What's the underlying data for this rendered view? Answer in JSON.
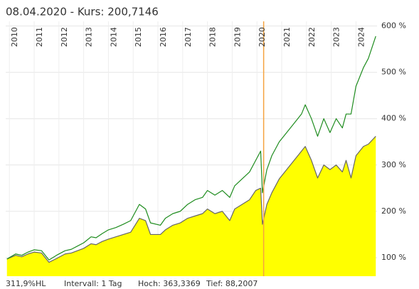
{
  "chart_data": {
    "type": "line",
    "title": "08.04.2020  -  Kurs: 200,7146",
    "x": [
      2009.9,
      2010.25,
      2010.5,
      2010.75,
      2011.0,
      2011.3,
      2011.6,
      2011.9,
      2012.25,
      2012.5,
      2012.75,
      2013.0,
      2013.3,
      2013.5,
      2013.75,
      2014.0,
      2014.3,
      2014.6,
      2014.9,
      2015.25,
      2015.5,
      2015.7,
      2016.1,
      2016.3,
      2016.6,
      2016.9,
      2017.2,
      2017.5,
      2017.8,
      2018.0,
      2018.3,
      2018.6,
      2018.9,
      2019.1,
      2019.4,
      2019.7,
      2019.95,
      2020.15,
      2020.22,
      2020.4,
      2020.6,
      2020.9,
      2021.2,
      2021.5,
      2021.8,
      2021.95,
      2022.2,
      2022.45,
      2022.7,
      2022.95,
      2023.2,
      2023.45,
      2023.6,
      2023.8,
      2024.0,
      2024.3,
      2024.5,
      2024.8
    ],
    "series": [
      {
        "color": "#666666",
        "fill": "#ffff00",
        "values": [
          97,
          105,
          102,
          108,
          112,
          110,
          90,
          98,
          108,
          110,
          115,
          120,
          130,
          128,
          135,
          140,
          145,
          150,
          155,
          185,
          180,
          150,
          150,
          160,
          170,
          175,
          185,
          190,
          195,
          205,
          195,
          200,
          180,
          205,
          215,
          225,
          245,
          250,
          172,
          215,
          240,
          270,
          290,
          310,
          330,
          340,
          310,
          272,
          300,
          290,
          300,
          285,
          310,
          272,
          320,
          340,
          345,
          362
        ]
      },
      {
        "color": "#1e8c1e",
        "values": [
          97,
          108,
          105,
          112,
          117,
          115,
          95,
          105,
          115,
          118,
          125,
          132,
          145,
          143,
          152,
          160,
          165,
          172,
          180,
          215,
          205,
          175,
          170,
          185,
          195,
          200,
          215,
          225,
          230,
          245,
          235,
          245,
          230,
          255,
          270,
          285,
          310,
          330,
          240,
          290,
          320,
          350,
          370,
          390,
          410,
          430,
          400,
          362,
          400,
          370,
          400,
          380,
          410,
          410,
          470,
          510,
          530,
          578
        ]
      }
    ],
    "xlim": [
      2009.85,
      2024.85
    ],
    "xticks": [
      2010,
      2011,
      2012,
      2013,
      2014,
      2015,
      2016,
      2017,
      2018,
      2019,
      2020,
      2021,
      2022,
      2023,
      2024
    ],
    "ylim": [
      60,
      610
    ],
    "yticks": [
      {
        "value": 100,
        "label": "100 %"
      },
      {
        "value": 200,
        "label": "200 %"
      },
      {
        "value": 300,
        "label": "300 %"
      },
      {
        "value": 400,
        "label": "400 %"
      },
      {
        "value": 500,
        "label": "500 %"
      },
      {
        "value": 600,
        "label": "600 %"
      }
    ],
    "grid": true,
    "cursor": {
      "x": 2020.27,
      "color": "#f5a340"
    },
    "footer": [
      "311,9%HL",
      "Intervall: 1 Tag",
      "Hoch: 363,3369",
      "Tief: 88,2007"
    ]
  }
}
